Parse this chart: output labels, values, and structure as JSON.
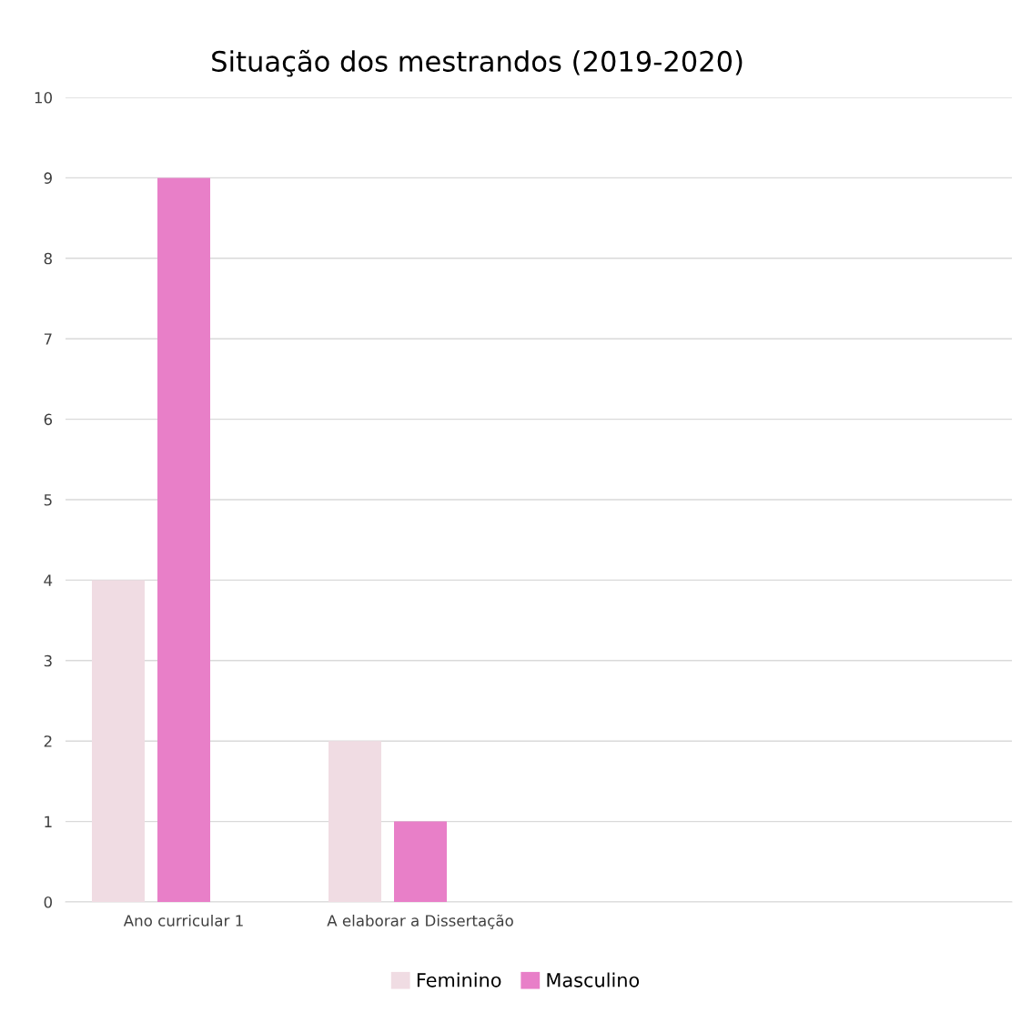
{
  "chart_data": {
    "type": "bar",
    "title": "Situação dos mestrandos (2019-2020)",
    "categories": [
      "Ano curricular 1",
      "A elaborar a Dissertação",
      null,
      null
    ],
    "series": [
      {
        "name": "Feminino",
        "color": "#f0dce3",
        "values": [
          4,
          2,
          null,
          null
        ]
      },
      {
        "name": "Masculino",
        "color": "#e87fc8",
        "values": [
          9,
          1,
          null,
          null
        ]
      }
    ],
    "ylim": [
      0,
      10
    ],
    "yticks": [
      0,
      1,
      2,
      3,
      4,
      5,
      6,
      7,
      8,
      9,
      10
    ],
    "grid": "y",
    "legend": "bottom"
  }
}
